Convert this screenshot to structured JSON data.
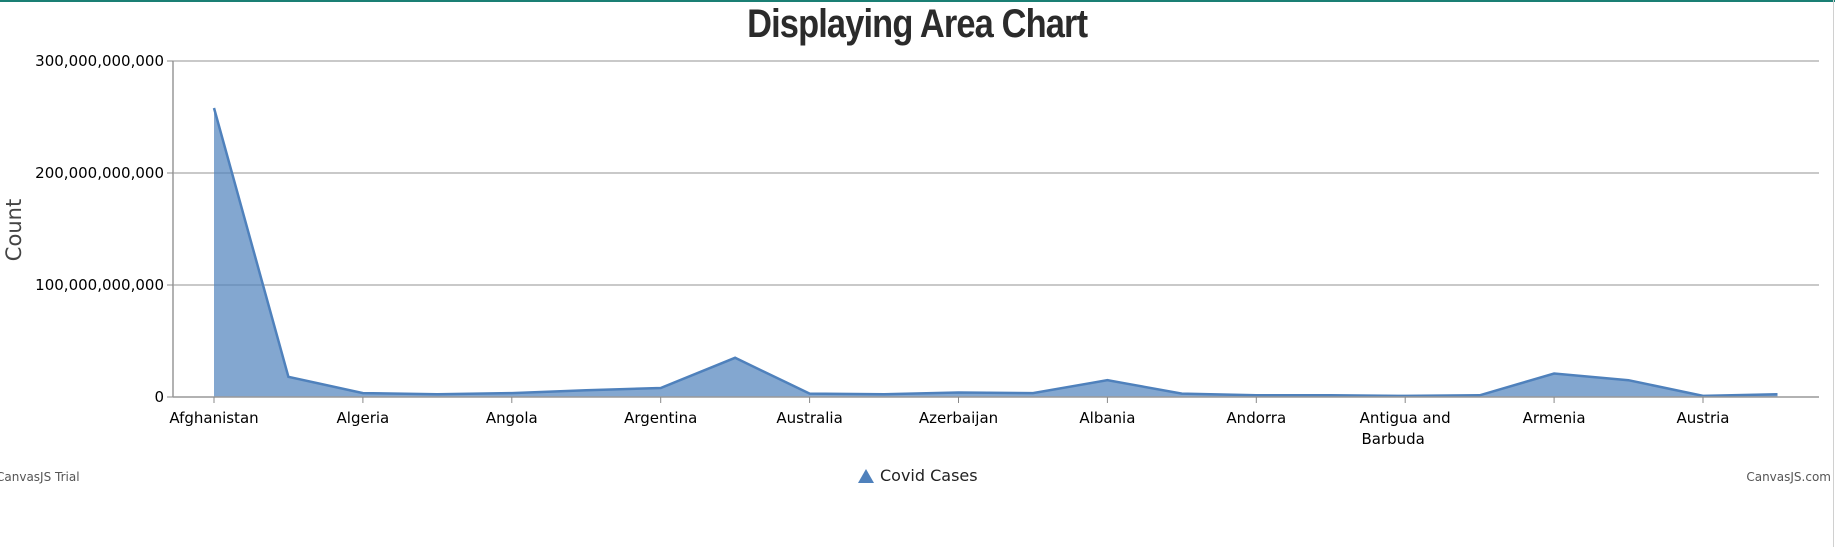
{
  "chart_data": {
    "type": "area",
    "title": "Displaying Area Chart",
    "xlabel": "",
    "ylabel": "Count",
    "ylim": [
      0,
      300000000000
    ],
    "yticks": [
      "0",
      "100,000,000,000",
      "200,000,000,000",
      "300,000,000,000"
    ],
    "ytick_values": [
      0,
      100000000000,
      200000000000,
      300000000000
    ],
    "grid": true,
    "legend": "bottom-center",
    "color": "#4f81bc",
    "x": [
      "Afghanistan",
      "",
      "Algeria",
      "",
      "Angola",
      "",
      "Argentina",
      "",
      "Australia",
      "",
      "Azerbaijan",
      "",
      "Albania",
      "",
      "Andorra",
      "",
      "Antigua and Barbuda",
      "",
      "Armenia",
      "",
      "Austria",
      ""
    ],
    "series": [
      {
        "name": "Covid Cases",
        "values": [
          258000000000,
          18000000000,
          3500000000,
          2500000000,
          3500000000,
          6000000000,
          8000000000,
          35000000000,
          3000000000,
          2500000000,
          4000000000,
          3500000000,
          15000000000,
          3000000000,
          1500000000,
          1500000000,
          1000000000,
          1500000000,
          21000000000,
          15000000000,
          1000000000,
          2500000000
        ]
      }
    ]
  },
  "credits": {
    "left": "CanvasJS Trial",
    "right": "CanvasJS.com"
  }
}
